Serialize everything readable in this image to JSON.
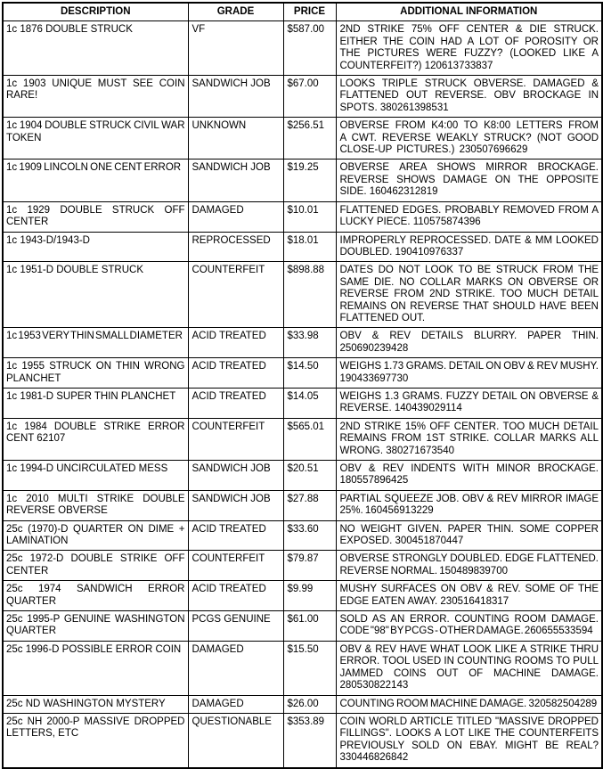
{
  "table": {
    "columns": [
      {
        "label": "DESCRIPTION"
      },
      {
        "label": "GRADE"
      },
      {
        "label": "PRICE"
      },
      {
        "label": "ADDITIONAL INFORMATION"
      }
    ],
    "rows": [
      {
        "description": "1c 1876 DOUBLE STRUCK",
        "grade": "VF",
        "price": "$587.00",
        "info": "2ND STRIKE 75% OFF CENTER & DIE STRUCK. EITHER THE COIN HAD A LOT OF POROSITY OR THE PICTURES WERE FUZZY? (LOOKED LIKE A COUNTERFEIT?) 120613733837"
      },
      {
        "description": "1c 1903 UNIQUE MUST SEE COIN RARE!",
        "grade": "SANDWICH JOB",
        "price": "$67.00",
        "info": "LOOKS TRIPLE STRUCK OBVERSE. DAMAGED & FLATTENED OUT REVERSE. OBV BROCKAGE IN SPOTS. 380261398531"
      },
      {
        "description": "1c 1904 DOUBLE STRUCK CIVIL WAR TOKEN",
        "grade": "UNKNOWN",
        "price": "$256.51",
        "info": "OBVERSE FROM K4:00 TO K8:00 LETTERS FROM A CWT. REVERSE WEAKLY STRUCK? (NOT GOOD CLOSE-UP PICTURES.) 230507696629"
      },
      {
        "description": "1c 1909 LINCOLN ONE CENT ERROR",
        "grade": "SANDWICH JOB",
        "price": "$19.25",
        "info": "OBVERSE AREA SHOWS MIRROR BROCKAGE. REVERSE SHOWS DAMAGE ON THE OPPOSITE SIDE. 160462312819"
      },
      {
        "description": "1c 1929 DOUBLE STRUCK OFF CENTER",
        "grade": "DAMAGED",
        "price": "$10.01",
        "info": "FLATTENED EDGES. PROBABLY REMOVED FROM A LUCKY PIECE. 110575874396"
      },
      {
        "description": "1c 1943-D/1943-D",
        "grade": "REPROCESSED",
        "price": "$18.01",
        "info": "IMPROPERLY REPROCESSED. DATE & MM LOOKED DOUBLED. 190410976337"
      },
      {
        "description": "1c 1951-D DOUBLE STRUCK",
        "grade": "COUNTERFEIT",
        "price": "$898.88",
        "info": "DATES DO NOT LOOK TO BE STRUCK FROM THE SAME DIE. NO COLLAR MARKS ON OBVERSE OR REVERSE FROM 2ND STRIKE. TOO MUCH DETAIL REMAINS ON REVERSE THAT SHOULD HAVE BEEN FLATTENED OUT."
      },
      {
        "description": "1c 1953 VERY THIN SMALL DIAMETER",
        "grade": "ACID TREATED",
        "price": "$33.98",
        "info": "OBV & REV DETAILS BLURRY. PAPER THIN. 250690239428"
      },
      {
        "description": "1c 1955 STRUCK ON THIN WRONG PLANCHET",
        "grade": "ACID TREATED",
        "price": "$14.50",
        "info": "WEIGHS 1.73 GRAMS. DETAIL ON OBV & REV MUSHY. 190433697730"
      },
      {
        "description": "1c 1981-D SUPER THIN PLANCHET",
        "grade": "ACID TREATED",
        "price": "$14.05",
        "info": "WEIGHS 1.3 GRAMS. FUZZY DETAIL ON OBVERSE & REVERSE. 140439029114"
      },
      {
        "description": "1c 1984 DOUBLE STRIKE ERROR CENT 62107",
        "grade": "COUNTERFEIT",
        "price": "$565.01",
        "info": "2ND STRIKE 15% OFF CENTER. TOO MUCH DETAIL REMAINS FROM 1ST STRIKE. COLLAR MARKS ALL WRONG. 380271673540"
      },
      {
        "description": "1c 1994-D UNCIRCULATED MESS",
        "grade": "SANDWICH JOB",
        "price": "$20.51",
        "info": "OBV & REV INDENTS WITH MINOR BROCKAGE. 180557896425"
      },
      {
        "description": "1c 2010 MULTI STRIKE DOUBLE REVERSE OBVERSE",
        "grade": "SANDWICH JOB",
        "price": "$27.88",
        "info": "PARTIAL SQUEEZE JOB. OBV & REV MIRROR IMAGE 25%. 160456913229"
      },
      {
        "description": "25c (1970)-D QUARTER ON DIME + LAMINATION",
        "grade": "ACID TREATED",
        "price": "$33.60",
        "info": "NO WEIGHT GIVEN. PAPER THIN. SOME COPPER EXPOSED. 300451870447"
      },
      {
        "description": "25c 1972-D DOUBLE STRIKE OFF CENTER",
        "grade": "COUNTERFEIT",
        "price": "$79.87",
        "info": "OBVERSE STRONGLY DOUBLED. EDGE FLATTENED. REVERSE NORMAL. 150489839700"
      },
      {
        "description": "25c 1974 SANDWICH ERROR QUARTER",
        "grade": "ACID TREATED",
        "price": "$9.99",
        "info": "MUSHY SURFACES ON OBV & REV. SOME OF THE EDGE EATEN AWAY. 230516418317"
      },
      {
        "description": "25c 1995-P GENUINE WASHINGTON QUARTER",
        "grade": "PCGS GENUINE",
        "price": "$61.00",
        "info": "SOLD AS AN ERROR. COUNTING ROOM DAMAGE. CODE \"98\" BY PCGS - OTHER DAMAGE. 260655533594"
      },
      {
        "description": "25c 1996-D POSSIBLE ERROR COIN",
        "grade": "DAMAGED",
        "price": "$15.50",
        "info": "OBV & REV HAVE WHAT LOOK LIKE A STRIKE THRU ERROR. TOOL USED IN COUNTING ROOMS TO PULL JAMMED COINS OUT OF MACHINE DAMAGE. 280530822143"
      },
      {
        "description": "25c ND WASHINGTON MYSTERY",
        "grade": "DAMAGED",
        "price": "$26.00",
        "info": "COUNTING ROOM MACHINE DAMAGE. 320582504289"
      },
      {
        "description": "25c NH 2000-P MASSIVE DROPPED LETTERS, ETC",
        "grade": "QUESTIONABLE",
        "price": "$353.89",
        "info": "COIN WORLD ARTICLE TITLED \"MASSIVE DROPPED FILLINGS\". LOOKS A LOT LIKE THE COUNTERFEITS PREVIOUSLY SOLD ON EBAY. MIGHT BE REAL? 330446826842"
      }
    ]
  }
}
